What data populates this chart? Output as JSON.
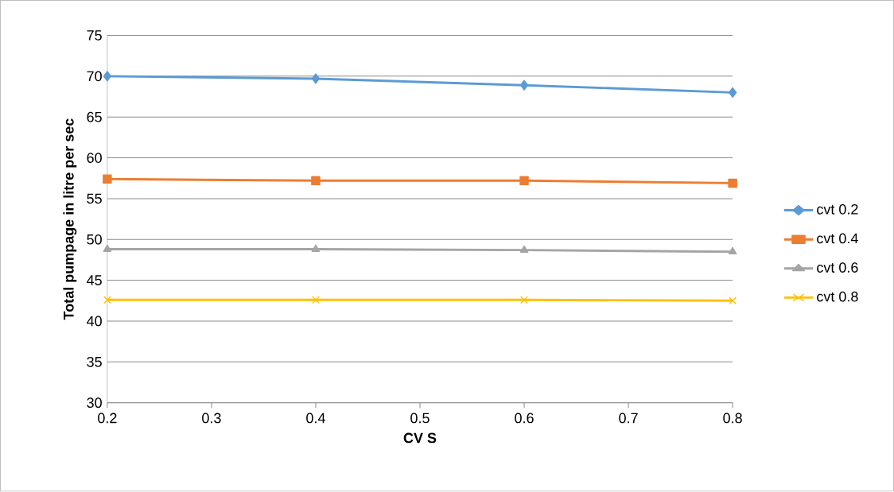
{
  "chart_data": {
    "type": "line",
    "xlabel": "CV S",
    "ylabel": "Total pumpage in litre per sec",
    "x": [
      0.2,
      0.4,
      0.6,
      0.8
    ],
    "series": [
      {
        "name": "cvt 0.2",
        "color": "#5b9bd5",
        "marker": "diamond",
        "values": [
          70.0,
          69.7,
          68.9,
          68.0
        ]
      },
      {
        "name": "cvt 0.4",
        "color": "#ed7d31",
        "marker": "square",
        "values": [
          57.4,
          57.2,
          57.2,
          56.9
        ]
      },
      {
        "name": "cvt 0.6",
        "color": "#a5a5a5",
        "marker": "triangle",
        "values": [
          48.8,
          48.8,
          48.7,
          48.5
        ]
      },
      {
        "name": "cvt 0.8",
        "color": "#ffc000",
        "marker": "cross",
        "values": [
          42.6,
          42.6,
          42.6,
          42.5
        ]
      }
    ],
    "xlim": [
      0.2,
      0.8
    ],
    "xticks": [
      0.2,
      0.3,
      0.4,
      0.5,
      0.6,
      0.7,
      0.8
    ],
    "ylim": [
      30,
      75
    ],
    "yticks": [
      30,
      35,
      40,
      45,
      50,
      55,
      60,
      65,
      70,
      75
    ],
    "grid": "y",
    "legend": "right",
    "line_style": "solid"
  }
}
